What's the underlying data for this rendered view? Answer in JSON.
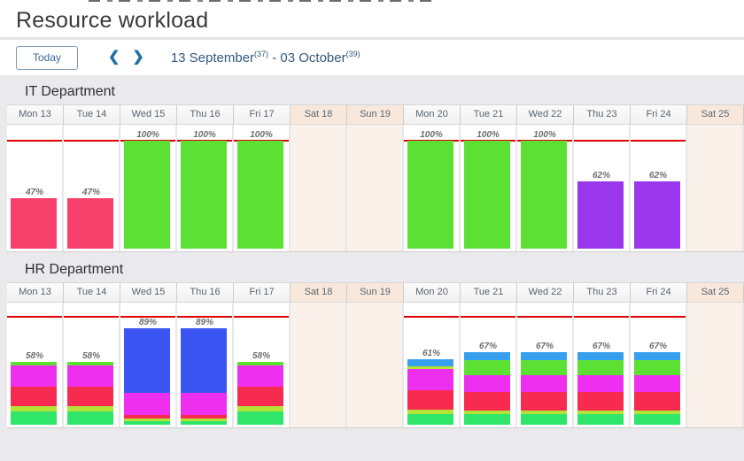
{
  "page_title": "Resource workload",
  "toolbar": {
    "today_label": "Today",
    "prev_icon": "❮",
    "next_icon": "❯",
    "date_range": {
      "start": "13 September",
      "start_week": "(37)",
      "separator": " - ",
      "end": "03 October",
      "end_week": "(39)"
    }
  },
  "colors": {
    "pink": "#f7406b",
    "green": "#5ce033",
    "purple": "#9a36ec",
    "springGreen": "#2fe56a",
    "yellowGreen": "#b2e336",
    "red": "#f72b50",
    "magenta": "#ef2ff0",
    "royalBlue": "#3b55f2",
    "dodgerBlue": "#36a0ef",
    "overloadLine": "#e00000"
  },
  "sections": [
    {
      "id": "it",
      "title": "IT Department",
      "days": [
        {
          "label": "Mon 13",
          "weekend": false,
          "pct": 47,
          "pct_label": "47%",
          "segments": [
            [
              "pink",
              47
            ]
          ]
        },
        {
          "label": "Tue 14",
          "weekend": false,
          "pct": 47,
          "pct_label": "47%",
          "segments": [
            [
              "pink",
              47
            ]
          ]
        },
        {
          "label": "Wed 15",
          "weekend": false,
          "pct": 100,
          "pct_label": "100%",
          "segments": [
            [
              "green",
              100
            ]
          ]
        },
        {
          "label": "Thu 16",
          "weekend": false,
          "pct": 100,
          "pct_label": "100%",
          "segments": [
            [
              "green",
              100
            ]
          ]
        },
        {
          "label": "Fri 17",
          "weekend": false,
          "pct": 100,
          "pct_label": "100%",
          "segments": [
            [
              "green",
              100
            ]
          ]
        },
        {
          "label": "Sat 18",
          "weekend": true
        },
        {
          "label": "Sun 19",
          "weekend": true
        },
        {
          "label": "Mon 20",
          "weekend": false,
          "pct": 100,
          "pct_label": "100%",
          "segments": [
            [
              "green",
              100
            ]
          ]
        },
        {
          "label": "Tue 21",
          "weekend": false,
          "pct": 100,
          "pct_label": "100%",
          "segments": [
            [
              "green",
              100
            ]
          ]
        },
        {
          "label": "Wed 22",
          "weekend": false,
          "pct": 100,
          "pct_label": "100%",
          "segments": [
            [
              "green",
              100
            ]
          ]
        },
        {
          "label": "Thu 23",
          "weekend": false,
          "pct": 62,
          "pct_label": "62%",
          "segments": [
            [
              "purple",
              62
            ]
          ]
        },
        {
          "label": "Fri 24",
          "weekend": false,
          "pct": 62,
          "pct_label": "62%",
          "segments": [
            [
              "purple",
              62
            ]
          ]
        },
        {
          "label": "Sat 25",
          "weekend": true
        }
      ]
    },
    {
      "id": "hr",
      "title": "HR Department",
      "days": [
        {
          "label": "Mon 13",
          "weekend": false,
          "pct": 58,
          "pct_label": "58%",
          "segments": [
            [
              "springGreen",
              12
            ],
            [
              "yellowGreen",
              5
            ],
            [
              "red",
              18
            ],
            [
              "magenta",
              20
            ],
            [
              "green",
              3
            ]
          ]
        },
        {
          "label": "Tue 14",
          "weekend": false,
          "pct": 58,
          "pct_label": "58%",
          "segments": [
            [
              "springGreen",
              12
            ],
            [
              "yellowGreen",
              5
            ],
            [
              "red",
              18
            ],
            [
              "magenta",
              20
            ],
            [
              "green",
              3
            ]
          ]
        },
        {
          "label": "Wed 15",
          "weekend": false,
          "pct": 89,
          "pct_label": "89%",
          "segments": [
            [
              "springGreen",
              3
            ],
            [
              "yellowGreen",
              2
            ],
            [
              "red",
              4
            ],
            [
              "magenta",
              20
            ],
            [
              "royalBlue",
              60
            ]
          ]
        },
        {
          "label": "Thu 16",
          "weekend": false,
          "pct": 89,
          "pct_label": "89%",
          "segments": [
            [
              "springGreen",
              3
            ],
            [
              "yellowGreen",
              2
            ],
            [
              "red",
              4
            ],
            [
              "magenta",
              20
            ],
            [
              "royalBlue",
              60
            ]
          ]
        },
        {
          "label": "Fri 17",
          "weekend": false,
          "pct": 58,
          "pct_label": "58%",
          "segments": [
            [
              "springGreen",
              12
            ],
            [
              "yellowGreen",
              5
            ],
            [
              "red",
              18
            ],
            [
              "magenta",
              20
            ],
            [
              "green",
              3
            ]
          ]
        },
        {
          "label": "Sat 18",
          "weekend": true
        },
        {
          "label": "Sun 19",
          "weekend": true
        },
        {
          "label": "Mon 20",
          "weekend": false,
          "pct": 61,
          "pct_label": "61%",
          "segments": [
            [
              "springGreen",
              10
            ],
            [
              "yellowGreen",
              4
            ],
            [
              "red",
              18
            ],
            [
              "magenta",
              20
            ],
            [
              "yellowGreen",
              2
            ],
            [
              "dodgerBlue",
              7
            ]
          ]
        },
        {
          "label": "Tue 21",
          "weekend": false,
          "pct": 67,
          "pct_label": "67%",
          "segments": [
            [
              "springGreen",
              10
            ],
            [
              "yellowGreen",
              3
            ],
            [
              "red",
              17
            ],
            [
              "magenta",
              16
            ],
            [
              "green",
              14
            ],
            [
              "dodgerBlue",
              7
            ]
          ]
        },
        {
          "label": "Wed 22",
          "weekend": false,
          "pct": 67,
          "pct_label": "67%",
          "segments": [
            [
              "springGreen",
              10
            ],
            [
              "yellowGreen",
              3
            ],
            [
              "red",
              17
            ],
            [
              "magenta",
              16
            ],
            [
              "green",
              14
            ],
            [
              "dodgerBlue",
              7
            ]
          ]
        },
        {
          "label": "Thu 23",
          "weekend": false,
          "pct": 67,
          "pct_label": "67%",
          "segments": [
            [
              "springGreen",
              10
            ],
            [
              "yellowGreen",
              3
            ],
            [
              "red",
              17
            ],
            [
              "magenta",
              16
            ],
            [
              "green",
              14
            ],
            [
              "dodgerBlue",
              7
            ]
          ]
        },
        {
          "label": "Fri 24",
          "weekend": false,
          "pct": 67,
          "pct_label": "67%",
          "segments": [
            [
              "springGreen",
              10
            ],
            [
              "yellowGreen",
              3
            ],
            [
              "red",
              17
            ],
            [
              "magenta",
              16
            ],
            [
              "green",
              14
            ],
            [
              "dodgerBlue",
              7
            ]
          ]
        },
        {
          "label": "Sat 25",
          "weekend": true
        }
      ]
    }
  ],
  "chart_data": [
    {
      "type": "bar",
      "title": "IT Department workload %",
      "categories": [
        "Mon 13",
        "Tue 14",
        "Wed 15",
        "Thu 16",
        "Fri 17",
        "Sat 18",
        "Sun 19",
        "Mon 20",
        "Tue 21",
        "Wed 22",
        "Thu 23",
        "Fri 24",
        "Sat 25"
      ],
      "values": [
        47,
        47,
        100,
        100,
        100,
        null,
        null,
        100,
        100,
        100,
        62,
        62,
        null
      ],
      "ylim": [
        0,
        100
      ],
      "annotations": "red horizontal line marks 100% capacity on each working day"
    },
    {
      "type": "bar",
      "title": "HR Department workload %",
      "categories": [
        "Mon 13",
        "Tue 14",
        "Wed 15",
        "Thu 16",
        "Fri 17",
        "Sat 18",
        "Sun 19",
        "Mon 20",
        "Tue 21",
        "Wed 22",
        "Thu 23",
        "Fri 24",
        "Sat 25"
      ],
      "values": [
        58,
        58,
        89,
        89,
        58,
        null,
        null,
        61,
        67,
        67,
        67,
        67,
        null
      ],
      "ylim": [
        0,
        100
      ],
      "annotations": "stacked multi-color bars; red horizontal line marks 100% capacity on each working day"
    }
  ]
}
